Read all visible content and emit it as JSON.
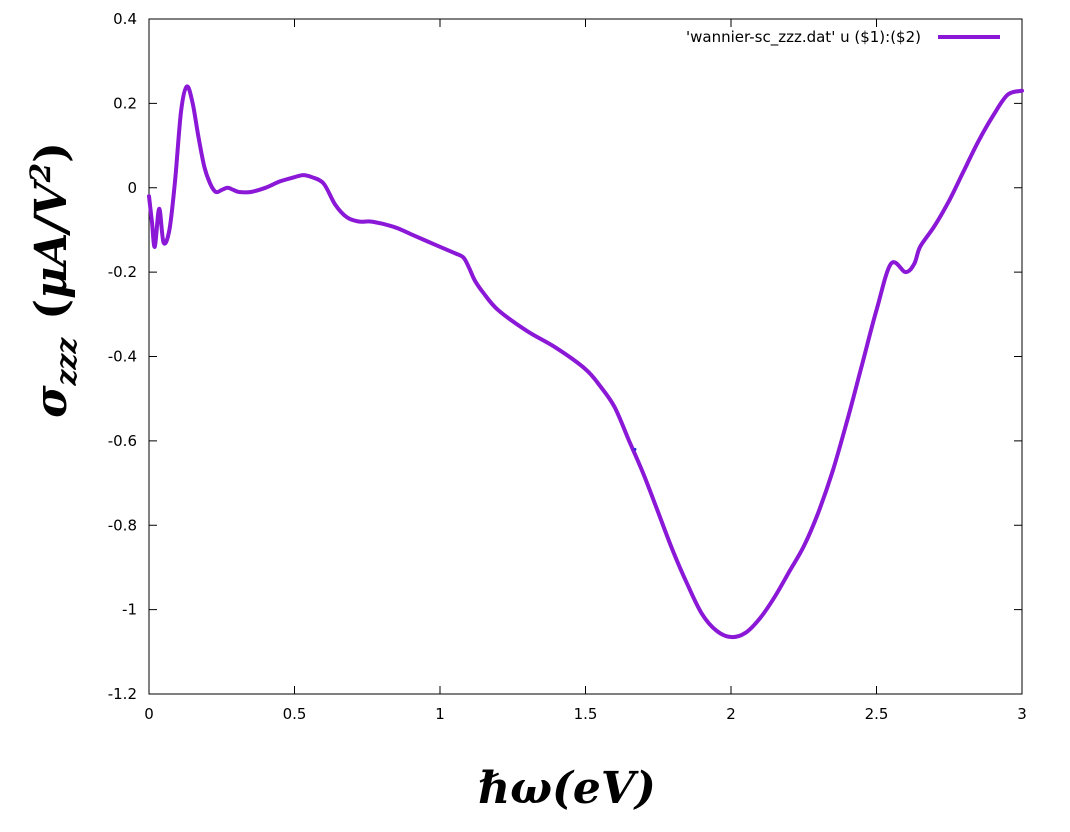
{
  "chart_data": {
    "type": "line",
    "xlabel": "ℏω(eV)",
    "ylabel": {
      "symbol": "σ",
      "subscript": "zzz",
      "unit_open": "(",
      "unit_main": "μA/V",
      "unit_sup": "2",
      "unit_close": ")"
    },
    "xlim": [
      0,
      3
    ],
    "ylim": [
      -1.2,
      0.4
    ],
    "x_ticks": [
      "0",
      "0.5",
      "1",
      "1.5",
      "2",
      "2.5",
      "3"
    ],
    "x_tick_values": [
      0,
      0.5,
      1,
      1.5,
      2,
      2.5,
      3
    ],
    "y_ticks": [
      "0.4",
      "0.2",
      "0",
      "-0.2",
      "-0.4",
      "-0.6",
      "-0.8",
      "-1",
      "-1.2"
    ],
    "y_tick_values": [
      0.4,
      0.2,
      0,
      -0.2,
      -0.4,
      -0.6,
      -0.8,
      -1,
      -1.2
    ],
    "grid": false,
    "legend_position": "top-right",
    "series": [
      {
        "name": "'wannier-sc_zzz.dat' u ($1):($2)",
        "color": "#8a18d6",
        "x": [
          0,
          0.01,
          0.02,
          0.035,
          0.05,
          0.07,
          0.09,
          0.11,
          0.13,
          0.15,
          0.17,
          0.19,
          0.21,
          0.23,
          0.25,
          0.27,
          0.29,
          0.31,
          0.35,
          0.4,
          0.45,
          0.5,
          0.53,
          0.56,
          0.6,
          0.64,
          0.68,
          0.72,
          0.76,
          0.8,
          0.85,
          0.9,
          0.95,
          1.0,
          1.05,
          1.08,
          1.1,
          1.12,
          1.15,
          1.2,
          1.3,
          1.4,
          1.5,
          1.55,
          1.6,
          1.65,
          1.7,
          1.75,
          1.8,
          1.85,
          1.9,
          1.95,
          2.0,
          2.05,
          2.1,
          2.15,
          2.2,
          2.25,
          2.3,
          2.35,
          2.4,
          2.45,
          2.5,
          2.55,
          2.6,
          2.63,
          2.65,
          2.7,
          2.75,
          2.8,
          2.85,
          2.9,
          2.95,
          3.0
        ],
        "y": [
          -0.02,
          -0.08,
          -0.14,
          -0.05,
          -0.13,
          -0.1,
          0.02,
          0.18,
          0.24,
          0.2,
          0.12,
          0.05,
          0.01,
          -0.01,
          -0.005,
          0.0,
          -0.005,
          -0.01,
          -0.01,
          0.0,
          0.015,
          0.025,
          0.03,
          0.025,
          0.01,
          -0.04,
          -0.07,
          -0.08,
          -0.08,
          -0.085,
          -0.095,
          -0.11,
          -0.125,
          -0.14,
          -0.155,
          -0.165,
          -0.19,
          -0.22,
          -0.25,
          -0.29,
          -0.34,
          -0.38,
          -0.43,
          -0.47,
          -0.52,
          -0.6,
          -0.68,
          -0.77,
          -0.86,
          -0.94,
          -1.01,
          -1.05,
          -1.065,
          -1.055,
          -1.02,
          -0.97,
          -0.91,
          -0.85,
          -0.77,
          -0.67,
          -0.55,
          -0.42,
          -0.29,
          -0.18,
          -0.2,
          -0.18,
          -0.14,
          -0.09,
          -0.03,
          0.04,
          0.11,
          0.17,
          0.22,
          0.23
        ]
      }
    ],
    "annotations": [
      {
        "type": "point-marker",
        "x": 1.67,
        "y": -0.62,
        "color": "#2a2adc"
      }
    ]
  }
}
